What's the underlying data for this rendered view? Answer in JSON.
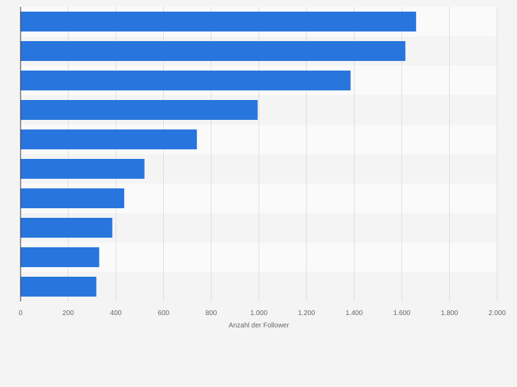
{
  "chart_data": {
    "type": "bar",
    "orientation": "horizontal",
    "categories": [
      "",
      "",
      "",
      "",
      "",
      "",
      "",
      "",
      "",
      ""
    ],
    "values": [
      1660,
      1615,
      1385,
      995,
      740,
      520,
      435,
      385,
      330,
      318
    ],
    "xlabel": "Anzahl der Follower",
    "ylabel": "",
    "xlim": [
      0,
      2000
    ],
    "ticks": [
      0,
      200,
      400,
      600,
      800,
      1000,
      1200,
      1400,
      1600,
      1800,
      2000
    ],
    "tick_labels": [
      "0",
      "200",
      "400",
      "600",
      "800",
      "1.000",
      "1.200",
      "1.400",
      "1.600",
      "1.800",
      "2.000"
    ],
    "grid": true,
    "colors": {
      "bar": "#2876dd",
      "band_light": "#fafafa",
      "band_dark": "#f4f4f4",
      "grid": "#dddddd",
      "axis": "#333333",
      "tick_text": "#666666"
    }
  }
}
